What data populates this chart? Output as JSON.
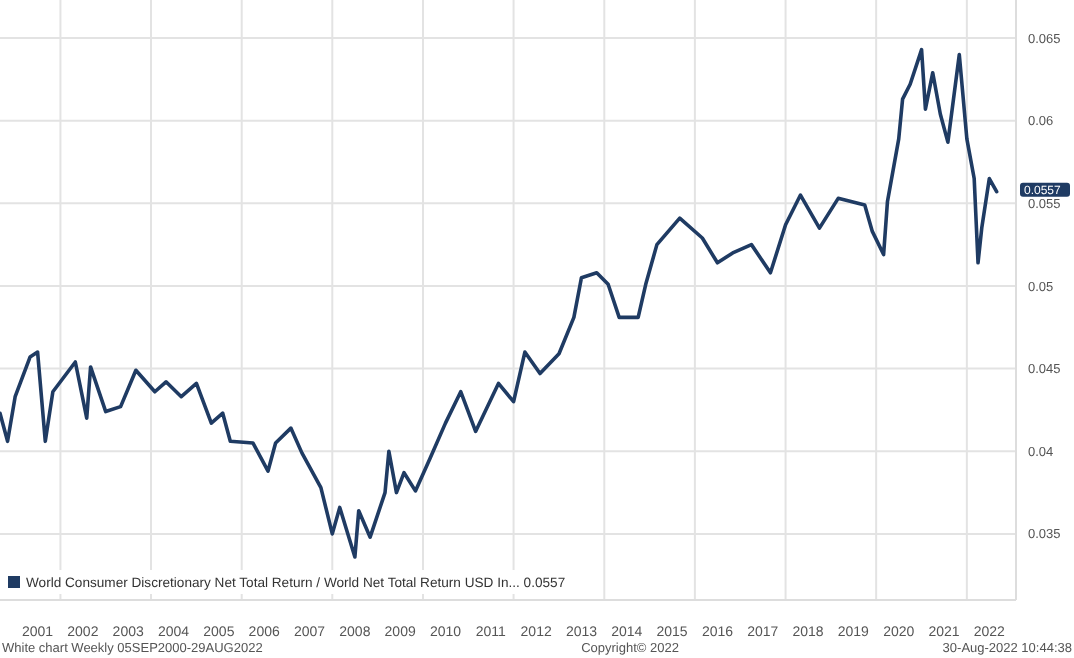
{
  "chart_data": {
    "type": "line",
    "x": [
      "2000-09",
      "2000-11",
      "2001-01",
      "2001-05",
      "2001-07",
      "2001-09",
      "2001-11",
      "2002-05",
      "2002-08",
      "2002-09",
      "2003-01",
      "2003-05",
      "2003-09",
      "2004-02",
      "2004-05",
      "2004-09",
      "2005-01",
      "2005-05",
      "2005-08",
      "2005-10",
      "2006-04",
      "2006-08",
      "2006-10",
      "2007-02",
      "2007-05",
      "2007-10",
      "2008-01",
      "2008-03",
      "2008-07",
      "2008-08",
      "2008-11",
      "2009-03",
      "2009-04",
      "2009-06",
      "2009-08",
      "2009-11",
      "2010-03",
      "2010-07",
      "2010-11",
      "2011-03",
      "2011-09",
      "2012-01",
      "2012-04",
      "2012-08",
      "2013-01",
      "2013-05",
      "2013-07",
      "2013-11",
      "2014-02",
      "2014-05",
      "2014-10",
      "2014-12",
      "2015-03",
      "2015-09",
      "2016-03",
      "2016-07",
      "2016-11",
      "2017-04",
      "2017-09",
      "2018-01",
      "2018-05",
      "2018-10",
      "2019-03",
      "2019-10",
      "2019-12",
      "2020-03",
      "2020-04",
      "2020-07",
      "2020-08",
      "2020-10",
      "2021-01",
      "2021-02",
      "2021-04",
      "2021-06",
      "2021-08",
      "2021-11",
      "2022-01",
      "2022-03",
      "2022-04",
      "2022-05",
      "2022-07",
      "2022-08-29"
    ],
    "series": [
      {
        "name": "World Consumer Discretionary Net Total Return / World Net Total Return USD In... 0.0557",
        "color": "#1f3b63",
        "values": [
          0.0423,
          0.0406,
          0.0433,
          0.0457,
          0.046,
          0.0406,
          0.0436,
          0.0454,
          0.042,
          0.0451,
          0.0424,
          0.0427,
          0.0449,
          0.0436,
          0.0442,
          0.0433,
          0.0441,
          0.0417,
          0.0423,
          0.0406,
          0.0405,
          0.0388,
          0.0405,
          0.0414,
          0.0399,
          0.0378,
          0.035,
          0.0366,
          0.0336,
          0.0364,
          0.0348,
          0.0375,
          0.04,
          0.0375,
          0.0387,
          0.0376,
          0.0396,
          0.0417,
          0.0436,
          0.0412,
          0.0441,
          0.043,
          0.046,
          0.0447,
          0.0459,
          0.0481,
          0.0505,
          0.0508,
          0.0501,
          0.0481,
          0.0481,
          0.0501,
          0.0525,
          0.0541,
          0.0529,
          0.0514,
          0.052,
          0.0525,
          0.0508,
          0.0537,
          0.0555,
          0.0535,
          0.0553,
          0.0549,
          0.0533,
          0.0519,
          0.0551,
          0.0589,
          0.0613,
          0.0622,
          0.0643,
          0.0607,
          0.0629,
          0.0604,
          0.0587,
          0.064,
          0.0589,
          0.0565,
          0.0514,
          0.0535,
          0.0565,
          0.0557
        ]
      }
    ],
    "xlim": [
      "2000-09-01",
      "2023-02-01"
    ],
    "xticks": [
      {
        "value": "2001-07",
        "label": "2001"
      },
      {
        "value": "2002-07",
        "label": "2002"
      },
      {
        "value": "2003-07",
        "label": "2003"
      },
      {
        "value": "2004-07",
        "label": "2004"
      },
      {
        "value": "2005-07",
        "label": "2005"
      },
      {
        "value": "2006-07",
        "label": "2006"
      },
      {
        "value": "2007-07",
        "label": "2007"
      },
      {
        "value": "2008-07",
        "label": "2008"
      },
      {
        "value": "2009-07",
        "label": "2009"
      },
      {
        "value": "2010-07",
        "label": "2010"
      },
      {
        "value": "2011-07",
        "label": "2011"
      },
      {
        "value": "2012-07",
        "label": "2012"
      },
      {
        "value": "2013-07",
        "label": "2013"
      },
      {
        "value": "2014-07",
        "label": "2014"
      },
      {
        "value": "2015-07",
        "label": "2015"
      },
      {
        "value": "2016-07",
        "label": "2016"
      },
      {
        "value": "2017-07",
        "label": "2017"
      },
      {
        "value": "2018-07",
        "label": "2018"
      },
      {
        "value": "2019-07",
        "label": "2019"
      },
      {
        "value": "2020-07",
        "label": "2020"
      },
      {
        "value": "2021-07",
        "label": "2021"
      },
      {
        "value": "2022-07",
        "label": "2022"
      },
      {
        "value": "2002",
        "label": null
      },
      {
        "value": "2004",
        "label": null
      },
      {
        "value": "2006",
        "label": null
      },
      {
        "value": "2008",
        "label": null
      },
      {
        "value": "2010",
        "label": null
      },
      {
        "value": "2012",
        "label": null
      },
      {
        "value": "2014",
        "label": null
      },
      {
        "value": "2016",
        "label": null
      },
      {
        "value": "2018",
        "label": null
      },
      {
        "value": "2020",
        "label": null
      },
      {
        "value": "2022",
        "label": null
      }
    ],
    "ylim": [
      0.031,
      0.0673
    ],
    "yticks": [
      0.035,
      0.04,
      0.045,
      0.05,
      0.055,
      0.06,
      0.065
    ],
    "grid": true,
    "legend": "bottom left",
    "line_style": "solid",
    "marker": "none",
    "annotations": [
      {
        "text": "0.0557",
        "x": "2022-08-29",
        "y": 0.0557
      },
      "White chart  Weekly 05SEP2000-29AUG2022",
      "Copyright© 2022",
      "30-Aug-2022 10:44:38"
    ]
  }
}
